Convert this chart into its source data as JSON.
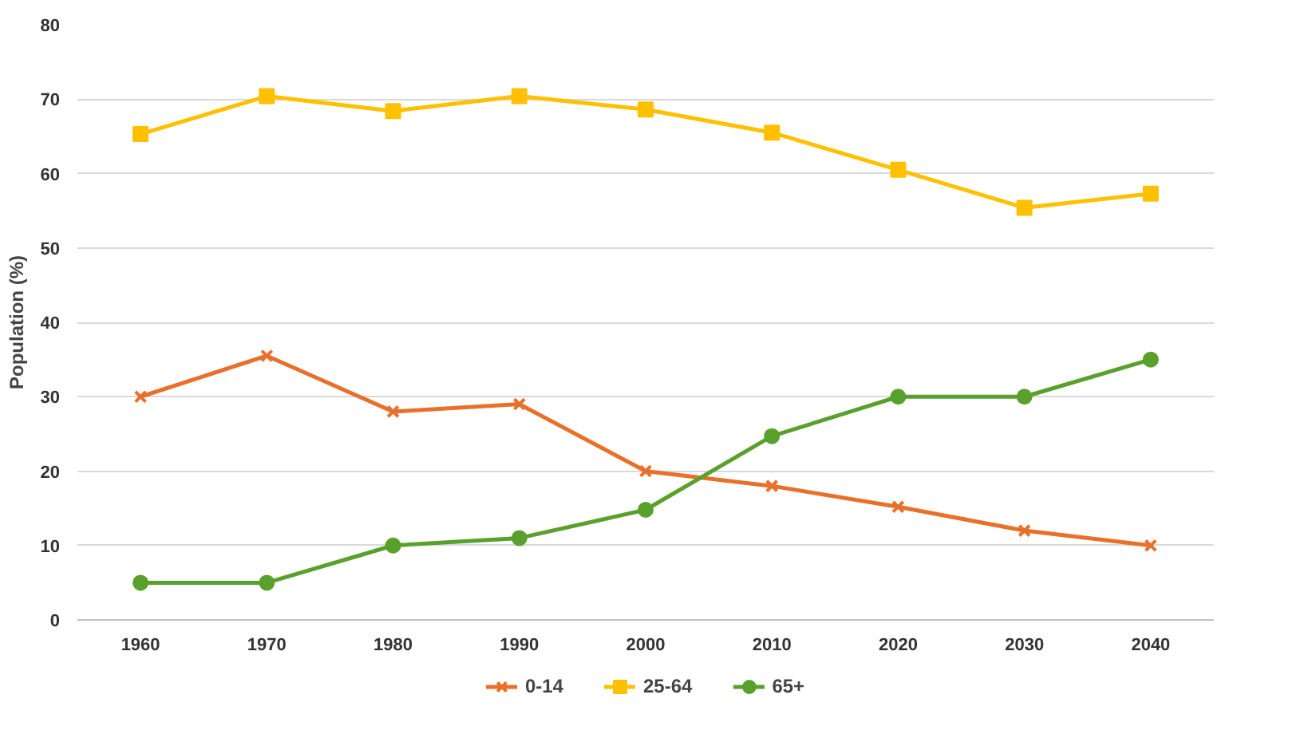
{
  "chart_data": {
    "type": "line",
    "ylabel": "Population (%)",
    "categories": [
      "1960",
      "1970",
      "1980",
      "1990",
      "2000",
      "2010",
      "2020",
      "2030",
      "2040"
    ],
    "series": [
      {
        "name": "0-14",
        "color": "#e8702a",
        "marker": "cross",
        "values": [
          30,
          35.5,
          28,
          29,
          20,
          18,
          15.2,
          12,
          10
        ]
      },
      {
        "name": "25-64",
        "color": "#ffc000",
        "marker": "square",
        "values": [
          65.3,
          70.4,
          68.4,
          70.4,
          68.6,
          65.5,
          60.5,
          55.4,
          57.3
        ]
      },
      {
        "name": "65+",
        "color": "#5aa02c",
        "marker": "circle",
        "values": [
          5,
          5,
          10,
          11,
          14.8,
          24.7,
          30,
          30,
          35
        ]
      }
    ],
    "ylim": [
      0,
      80
    ],
    "yticks": [
      0,
      10,
      20,
      30,
      40,
      50,
      60,
      70,
      80
    ],
    "grid": "y",
    "legend": "bottom"
  }
}
